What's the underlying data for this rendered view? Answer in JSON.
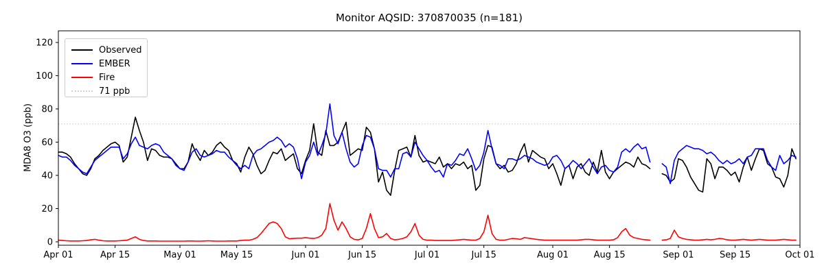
{
  "chart_data": {
    "type": "line",
    "title": "Monitor AQSID: 370870035 (n=181)",
    "xlabel": "",
    "ylabel": "MDA8 O3 (ppb)",
    "yticks": [
      0,
      20,
      40,
      60,
      80,
      100,
      120
    ],
    "ylim": [
      -2,
      127
    ],
    "x_axis": {
      "kind": "date",
      "n_days": 183,
      "tick_days": [
        0,
        14,
        30,
        44,
        61,
        75,
        91,
        105,
        122,
        136,
        153,
        167,
        183
      ],
      "tick_labels": [
        "Apr 01",
        "Apr 15",
        "May 01",
        "May 15",
        "Jun 01",
        "Jun 15",
        "Jul 01",
        "Jul 15",
        "Aug 01",
        "Aug 15",
        "Sep 01",
        "Sep 15",
        "Oct 01"
      ]
    },
    "grid": false,
    "reference_line": {
      "label": "71 ppb",
      "value": 71,
      "color": "#d3d3d3",
      "style": "dotted"
    },
    "legend": {
      "position": "upper left",
      "entries": [
        {
          "label": "Observed",
          "color": "#000000",
          "style": "solid"
        },
        {
          "label": "EMBER",
          "color": "#0000ff",
          "style": "solid"
        },
        {
          "label": "Fire",
          "color": "#ff0000",
          "style": "solid"
        },
        {
          "label": "71 ppb",
          "color": "#d3d3d3",
          "style": "dotted"
        }
      ]
    },
    "series": [
      {
        "name": "Observed",
        "color": "#000000",
        "values": [
          54,
          54,
          53,
          51,
          47,
          44,
          41,
          40,
          44,
          50,
          52,
          55,
          57,
          59,
          60,
          58,
          48,
          51,
          63,
          75,
          67,
          60,
          49,
          56,
          55,
          52,
          51,
          51,
          50,
          47,
          44,
          44,
          48,
          59,
          53,
          49,
          55,
          52,
          54,
          58,
          60,
          57,
          55,
          49,
          47,
          42,
          51,
          57,
          53,
          46,
          41,
          43,
          49,
          54,
          53,
          56,
          49,
          51,
          53,
          44,
          41,
          49,
          55,
          71,
          54,
          52,
          67,
          58,
          58,
          60,
          66,
          72,
          52,
          54,
          56,
          55,
          69,
          66,
          56,
          36,
          42,
          31,
          28,
          43,
          55,
          56,
          57,
          51,
          64,
          52,
          48,
          49,
          48,
          47,
          51,
          45,
          47,
          44,
          47,
          46,
          48,
          44,
          46,
          31,
          34,
          50,
          58,
          57,
          47,
          44,
          46,
          42,
          43,
          47,
          54,
          59,
          48,
          55,
          53,
          51,
          50,
          44,
          47,
          41,
          34,
          44,
          46,
          38,
          45,
          47,
          42,
          40,
          48,
          42,
          55,
          42,
          38,
          42,
          44,
          46,
          48,
          47,
          45,
          51,
          47,
          46,
          44,
          null,
          null,
          41,
          40,
          36,
          38,
          50,
          49,
          45,
          39,
          35,
          31,
          30,
          50,
          47,
          38,
          45,
          45,
          43,
          40,
          42,
          36,
          45,
          51,
          43,
          50,
          56,
          55,
          47,
          45,
          39,
          38,
          33,
          40,
          56,
          50
        ]
      },
      {
        "name": "EMBER",
        "color": "#0000ff",
        "values": [
          52,
          51,
          51,
          49,
          46,
          44,
          42,
          41,
          45,
          49,
          51,
          53,
          55,
          57,
          57,
          57,
          50,
          53,
          59,
          63,
          58,
          57,
          56,
          58,
          59,
          58,
          54,
          52,
          50,
          46,
          44,
          43,
          48,
          54,
          56,
          52,
          51,
          52,
          53,
          55,
          54,
          54,
          51,
          49,
          46,
          44,
          46,
          44,
          52,
          55,
          56,
          58,
          60,
          61,
          63,
          61,
          57,
          59,
          57,
          50,
          38,
          48,
          52,
          60,
          52,
          58,
          65,
          83,
          64,
          59,
          66,
          56,
          48,
          45,
          47,
          58,
          64,
          63,
          56,
          44,
          43,
          43,
          39,
          44,
          44,
          53,
          54,
          51,
          60,
          56,
          52,
          49,
          45,
          42,
          43,
          39,
          47,
          46,
          49,
          53,
          52,
          56,
          50,
          43,
          46,
          54,
          67,
          56,
          47,
          46,
          44,
          50,
          50,
          49,
          50,
          52,
          51,
          50,
          48,
          47,
          46,
          47,
          51,
          52,
          49,
          44,
          46,
          49,
          47,
          44,
          47,
          50,
          45,
          41,
          45,
          46,
          43,
          42,
          45,
          54,
          56,
          54,
          57,
          59,
          56,
          57,
          48,
          null,
          null,
          47,
          45,
          35,
          49,
          54,
          56,
          58,
          57,
          56,
          56,
          55,
          53,
          54,
          52,
          49,
          47,
          49,
          47,
          48,
          50,
          47,
          51,
          52,
          56,
          56,
          56,
          49,
          45,
          43,
          52,
          47,
          49,
          52,
          51
        ]
      },
      {
        "name": "Fire",
        "color": "#ff0000",
        "values": [
          1,
          0.8,
          0.6,
          0.5,
          0.5,
          0.5,
          0.6,
          0.8,
          1.2,
          1.5,
          1,
          0.6,
          0.5,
          0.5,
          0.5,
          0.6,
          0.8,
          1,
          2,
          3,
          1.5,
          0.8,
          0.5,
          0.5,
          0.5,
          0.4,
          0.4,
          0.4,
          0.4,
          0.4,
          0.4,
          0.4,
          0.5,
          0.5,
          0.4,
          0.4,
          0.5,
          0.6,
          0.5,
          0.4,
          0.4,
          0.4,
          0.5,
          0.5,
          0.5,
          0.8,
          1,
          1,
          1.5,
          2.5,
          5,
          8,
          11,
          12,
          11,
          8,
          3,
          1.8,
          2,
          2.2,
          2.2,
          2.5,
          2.2,
          2,
          2.5,
          4,
          8,
          23,
          13,
          7,
          12,
          8,
          3,
          1.5,
          1.2,
          2,
          8,
          17,
          8,
          2.5,
          3,
          5,
          2,
          1.2,
          1.5,
          2,
          3,
          6,
          11,
          4,
          1.5,
          1,
          1,
          0.8,
          0.8,
          0.8,
          0.8,
          0.8,
          1,
          1.2,
          1.5,
          1.2,
          1,
          1,
          2,
          6,
          16,
          5,
          1.5,
          1,
          1,
          1.5,
          2,
          1.8,
          1.5,
          2.5,
          2.2,
          1.8,
          1.5,
          1.2,
          1,
          1,
          1,
          1,
          1,
          1,
          1,
          1,
          1,
          1.2,
          1.5,
          1.5,
          1.2,
          1,
          1,
          1,
          1,
          1.2,
          2.5,
          6,
          8,
          4,
          2.5,
          2,
          1.5,
          1.2,
          1,
          null,
          null,
          1,
          1.2,
          2,
          7,
          3,
          2,
          1.5,
          1.2,
          1,
          1,
          1.2,
          1.5,
          1.2,
          1.5,
          2,
          1.8,
          1.2,
          1,
          1,
          1.2,
          1.5,
          1.2,
          1,
          1.2,
          1.5,
          1.2,
          1,
          1,
          1,
          1.2,
          1.5,
          1.2,
          1,
          1
        ]
      }
    ]
  }
}
